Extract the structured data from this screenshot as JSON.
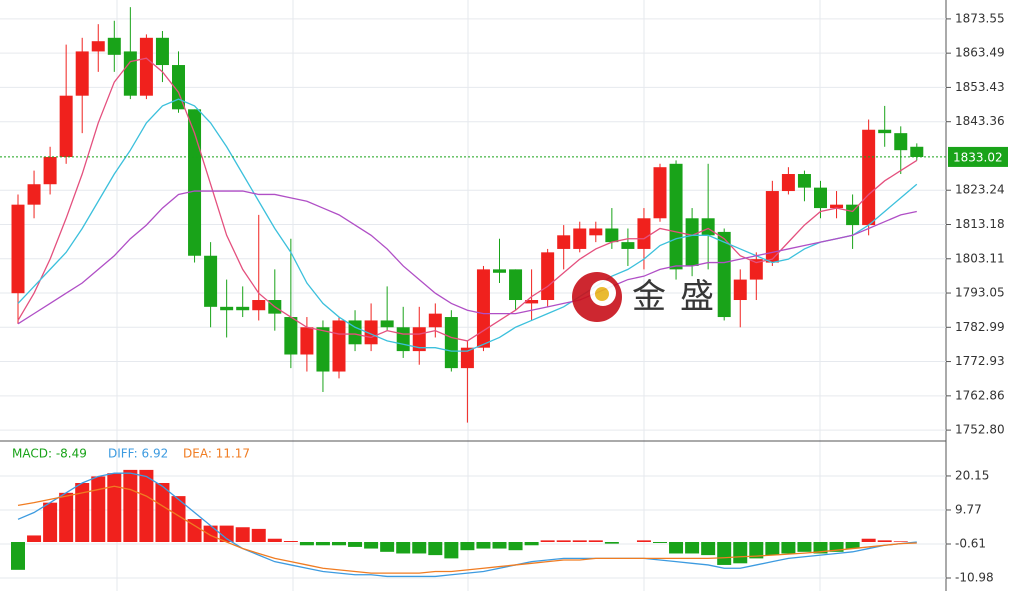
{
  "chart_data": [
    {
      "type": "candlestick",
      "open": [
        1793,
        1819,
        1825,
        1833,
        1851,
        1864,
        1868,
        1864,
        1851,
        1868,
        1860,
        1847,
        1804,
        1789,
        1789,
        1788,
        1791,
        1786,
        1775,
        1783,
        1770,
        1785,
        1778,
        1785,
        1783,
        1776,
        1783,
        1786,
        1771,
        1777,
        1800,
        1800,
        1790,
        1791,
        1806,
        1806,
        1810,
        1812,
        1808,
        1806,
        1815,
        1831,
        1815,
        1815,
        1811,
        1791,
        1797,
        1802,
        1823,
        1828,
        1824,
        1818,
        1819,
        1813,
        1841,
        1840,
        1836
      ],
      "high": [
        1822,
        1829,
        1836,
        1866,
        1868,
        1872,
        1873,
        1877,
        1869,
        1870,
        1864,
        1847,
        1808,
        1797,
        1795,
        1816,
        1800,
        1809,
        1786,
        1785,
        1786,
        1788,
        1790,
        1795,
        1789,
        1789,
        1790,
        1788,
        1779,
        1801,
        1809,
        1800,
        1800,
        1806,
        1813,
        1814,
        1814,
        1818,
        1812,
        1818,
        1831,
        1832,
        1818,
        1831,
        1812,
        1800,
        1805,
        1826,
        1830,
        1829,
        1826,
        1823,
        1822,
        1844,
        1848,
        1842,
        1837
      ],
      "low": [
        1784,
        1815,
        1822,
        1831,
        1840,
        1858,
        1858,
        1850,
        1850,
        1855,
        1846,
        1802,
        1783,
        1780,
        1786,
        1785,
        1782,
        1771,
        1770,
        1764,
        1768,
        1776,
        1776,
        1782,
        1774,
        1772,
        1780,
        1770,
        1755,
        1776,
        1796,
        1788,
        1785,
        1789,
        1800,
        1805,
        1808,
        1806,
        1801,
        1800,
        1814,
        1797,
        1798,
        1800,
        1785,
        1783,
        1791,
        1801,
        1822,
        1820,
        1815,
        1815,
        1806,
        1810,
        1836,
        1828,
        1832
      ],
      "close": [
        1819,
        1825,
        1833,
        1851,
        1864,
        1867,
        1863,
        1851,
        1868,
        1860,
        1847,
        1804,
        1789,
        1788,
        1788,
        1791,
        1787,
        1775,
        1783,
        1770,
        1785,
        1778,
        1785,
        1783,
        1776,
        1783,
        1787,
        1771,
        1777,
        1800,
        1799,
        1791,
        1791,
        1805,
        1810,
        1812,
        1812,
        1808,
        1806,
        1815,
        1830,
        1800,
        1801,
        1810,
        1786,
        1797,
        1803,
        1823,
        1828,
        1824,
        1818,
        1819,
        1813,
        1841,
        1840,
        1835,
        1833
      ],
      "up_color": "#f0211d",
      "down_color": "#19a319",
      "overlays": [
        {
          "color": "#e4507e",
          "values": [
            1785,
            1793,
            1803,
            1815,
            1828,
            1843,
            1855,
            1861,
            1862,
            1858,
            1852,
            1840,
            1825,
            1810,
            1800,
            1793,
            1789,
            1786,
            1783,
            1782,
            1781,
            1781,
            1780,
            1782,
            1781,
            1781,
            1782,
            1780,
            1779,
            1782,
            1785,
            1788,
            1792,
            1795,
            1799,
            1803,
            1806,
            1808,
            1809,
            1809,
            1812,
            1811,
            1810,
            1812,
            1809,
            1804,
            1802,
            1803,
            1808,
            1813,
            1817,
            1818,
            1817,
            1822,
            1826,
            1829,
            1832
          ]
        },
        {
          "color": "#3cc0dc",
          "values": [
            1790,
            1795,
            1800,
            1805,
            1812,
            1820,
            1828,
            1835,
            1843,
            1848,
            1850,
            1848,
            1843,
            1836,
            1828,
            1820,
            1812,
            1805,
            1796,
            1790,
            1786,
            1783,
            1781,
            1779,
            1778,
            1777,
            1777,
            1776,
            1776,
            1778,
            1780,
            1783,
            1785,
            1787,
            1789,
            1792,
            1795,
            1798,
            1800,
            1803,
            1807,
            1809,
            1810,
            1810,
            1808,
            1806,
            1804,
            1802,
            1803,
            1806,
            1808,
            1809,
            1810,
            1813,
            1817,
            1821,
            1825
          ]
        },
        {
          "color": "#b04fc6",
          "values": [
            1784,
            1787,
            1790,
            1793,
            1796,
            1800,
            1804,
            1809,
            1813,
            1818,
            1822,
            1823,
            1823,
            1823,
            1823,
            1822,
            1822,
            1821,
            1820,
            1818,
            1816,
            1813,
            1810,
            1806,
            1801,
            1797,
            1793,
            1790,
            1788,
            1787,
            1787,
            1787,
            1788,
            1789,
            1790,
            1791,
            1793,
            1795,
            1797,
            1798,
            1800,
            1801,
            1801,
            1802,
            1802,
            1803,
            1804,
            1805,
            1806,
            1807,
            1808,
            1809,
            1810,
            1812,
            1814,
            1816,
            1817
          ]
        }
      ],
      "ylim": [
        1749.6,
        1879.1
      ],
      "yticks": [
        1873.55,
        1863.49,
        1853.43,
        1843.36,
        1823.24,
        1813.18,
        1803.11,
        1793.05,
        1782.99,
        1772.93,
        1762.86,
        {
          "value": 1752.8,
          "label": "1752.80"
        }
      ],
      "last_price": 1833.02,
      "last_price_color": "#19a319",
      "watermark": "金盛"
    },
    {
      "type": "macd",
      "series": [
        {
          "name": "MACD",
          "legend": "MACD: -8.49",
          "color": "#19a319",
          "up_color": "#f0211d",
          "down_color": "#19a319",
          "values": [
            -8.49,
            2,
            12,
            15,
            18,
            20,
            21,
            22,
            22,
            18,
            14,
            7,
            5,
            5,
            4.5,
            4,
            1,
            0.3,
            -1,
            -1,
            -1,
            -1.5,
            -2,
            -3,
            -3.5,
            -3.5,
            -4,
            -5,
            -2.5,
            -2,
            -2,
            -2.5,
            -1,
            0.5,
            0.5,
            0.5,
            0.5,
            -0.5,
            0,
            0.5,
            -0.3,
            -3.5,
            -3.5,
            -4,
            -7,
            -6.5,
            -5,
            -4,
            -3.5,
            -3,
            -3.5,
            -3,
            -2,
            1,
            0.5,
            0.2,
            0
          ]
        },
        {
          "name": "DIFF",
          "legend": "DIFF: 6.92",
          "color": "#3d9be0",
          "values": [
            6.92,
            9,
            12,
            15,
            18,
            20,
            21,
            21,
            20,
            17,
            13,
            9,
            5,
            1,
            -2,
            -4,
            -6,
            -7,
            -8,
            -9,
            -9.5,
            -10,
            -10,
            -10.5,
            -10.5,
            -10.5,
            -10.5,
            -10,
            -9.5,
            -9,
            -8,
            -7,
            -6,
            -5.5,
            -5,
            -5,
            -5,
            -5,
            -5,
            -5,
            -5.5,
            -6,
            -6.5,
            -7,
            -8,
            -8,
            -7,
            -6,
            -5,
            -4.5,
            -4,
            -3.5,
            -3,
            -2,
            -1,
            -0.5,
            0
          ]
        },
        {
          "name": "DEA",
          "legend": "DEA: 11.17",
          "color": "#f07c22",
          "values": [
            11.17,
            12,
            13,
            14,
            15,
            16,
            17,
            16,
            14,
            11,
            8,
            5,
            2,
            0,
            -2,
            -3.5,
            -5,
            -6,
            -7,
            -8,
            -8.5,
            -9,
            -9.5,
            -9.5,
            -9.5,
            -9.5,
            -9,
            -9,
            -8.5,
            -8,
            -7.5,
            -7,
            -6.5,
            -6,
            -5.5,
            -5.5,
            -5,
            -5,
            -5,
            -5,
            -5,
            -5,
            -5,
            -5,
            -4.8,
            -4.5,
            -4.3,
            -4,
            -3.7,
            -3.4,
            -3,
            -2.5,
            -2,
            -1.5,
            -1,
            -0.5,
            -0.3
          ]
        }
      ],
      "ylim": [
        -14.95,
        29.9
      ],
      "yticks": [
        20.15,
        9.77,
        -0.61,
        -10.98
      ]
    }
  ]
}
